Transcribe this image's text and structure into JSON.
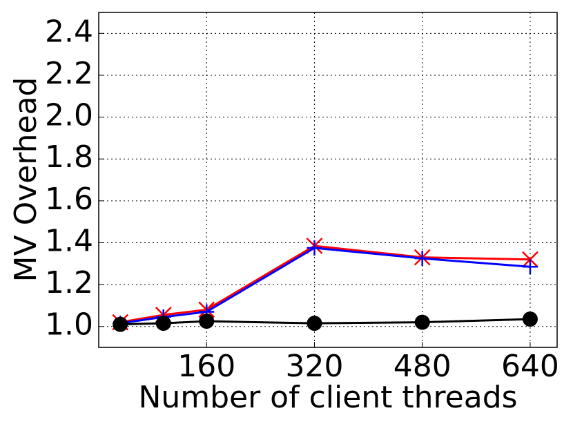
{
  "chart_data": {
    "type": "line",
    "x_label": "Number of client threads",
    "y_label": "MV Overhead",
    "x": [
      32,
      96,
      160,
      320,
      480,
      640
    ],
    "series": [
      {
        "color": "#ff0000",
        "marker": "x",
        "values": [
          1.02,
          1.055,
          1.08,
          1.385,
          1.33,
          1.32
        ]
      },
      {
        "color": "#0000ff",
        "marker": "+",
        "values": [
          1.015,
          1.045,
          1.07,
          1.375,
          1.325,
          1.285
        ]
      },
      {
        "color": "#000000",
        "marker": "o",
        "values": [
          1.01,
          1.015,
          1.025,
          1.015,
          1.02,
          1.035
        ]
      }
    ],
    "xlim": [
      0,
      680
    ],
    "ylim": [
      0.9,
      2.5
    ],
    "xticks": [
      160,
      320,
      480,
      640
    ],
    "yticks": [
      {
        "value": 1.0,
        "label": "1.0"
      },
      1.2,
      1.4,
      1.6,
      1.8,
      {
        "value": 2.0,
        "label": "2.0"
      },
      2.2,
      2.4
    ],
    "grid": true
  }
}
